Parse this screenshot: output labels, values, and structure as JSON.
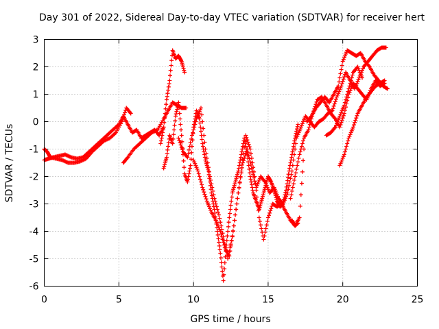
{
  "chart_data": {
    "type": "scatter",
    "title": "Day 301 of 2022, Sidereal Day-to-day VTEC variation (SDTVAR) for receiver hert",
    "xlabel": "GPS time / hours",
    "ylabel": "SDTVAR / TECUs",
    "xlim": [
      0,
      25
    ],
    "ylim": [
      -6,
      3
    ],
    "xticks": [
      0,
      5,
      10,
      15,
      20,
      25
    ],
    "yticks": [
      -6,
      -5,
      -4,
      -3,
      -2,
      -1,
      0,
      1,
      2,
      3
    ],
    "grid": true,
    "marker": "plus",
    "color": "#ff0000",
    "series": [
      {
        "name": "s1",
        "x": [
          0.0,
          0.3,
          0.6,
          1.0,
          1.4,
          1.8,
          2.2,
          2.6,
          3.0,
          3.4,
          3.8,
          4.2,
          4.6,
          5.0,
          5.3,
          5.6,
          5.9,
          6.2,
          6.5,
          6.8,
          7.1,
          7.4,
          7.7,
          8.0
        ],
        "y": [
          -1.4,
          -1.35,
          -1.3,
          -1.25,
          -1.2,
          -1.3,
          -1.35,
          -1.3,
          -1.1,
          -0.9,
          -0.7,
          -0.5,
          -0.3,
          -0.1,
          0.2,
          -0.1,
          -0.4,
          -0.3,
          -0.6,
          -0.5,
          -0.4,
          -0.3,
          -0.5,
          -0.2
        ]
      },
      {
        "name": "s2",
        "x": [
          0.0,
          0.2,
          0.4,
          0.8,
          1.2,
          1.6,
          2.0,
          2.4,
          2.8,
          3.2,
          3.6,
          4.0,
          4.4,
          4.8,
          5.2,
          5.5,
          5.8
        ],
        "y": [
          -1.0,
          -1.1,
          -1.3,
          -1.35,
          -1.4,
          -1.5,
          -1.5,
          -1.45,
          -1.35,
          -1.1,
          -0.9,
          -0.7,
          -0.6,
          -0.4,
          0.0,
          0.5,
          0.3
        ]
      },
      {
        "name": "s3",
        "x": [
          5.3,
          5.6,
          6.0,
          6.4,
          6.8,
          7.2,
          7.6,
          8.0,
          8.3,
          8.6,
          8.9,
          9.2,
          9.5
        ],
        "y": [
          -1.5,
          -1.3,
          -1.0,
          -0.8,
          -0.6,
          -0.4,
          -0.3,
          0.1,
          0.4,
          0.7,
          0.6,
          0.5,
          0.5
        ]
      },
      {
        "name": "s4",
        "x": [
          7.8,
          8.0,
          8.2,
          8.4,
          8.6,
          8.8,
          9.0,
          9.2,
          9.4
        ],
        "y": [
          -0.8,
          -0.2,
          0.8,
          1.5,
          2.6,
          2.3,
          2.4,
          2.2,
          1.8
        ]
      },
      {
        "name": "s5",
        "x": [
          8.0,
          8.2,
          8.4,
          8.6,
          8.8,
          9.0,
          9.2,
          9.4,
          9.6,
          9.8,
          10.0,
          10.2,
          10.4,
          10.6,
          10.8,
          11.0,
          11.2,
          11.4,
          11.6,
          11.8,
          12.0,
          12.2,
          12.4,
          12.6,
          12.8,
          13.0,
          13.2,
          13.4,
          13.6,
          13.8,
          14.0,
          14.2,
          14.4,
          14.6,
          14.8,
          15.0,
          15.2,
          15.4,
          15.6,
          15.8,
          16.0,
          16.2,
          16.4,
          16.6,
          16.8,
          17.0
        ],
        "y": [
          -1.7,
          -1.3,
          -0.5,
          -0.8,
          0.2,
          0.7,
          -0.5,
          -1.9,
          -2.2,
          -1.6,
          -0.2,
          0.4,
          0.1,
          -0.8,
          -1.4,
          -1.8,
          -2.6,
          -3.2,
          -4.0,
          -4.8,
          -5.8,
          -4.5,
          -3.5,
          -2.6,
          -2.2,
          -1.8,
          -1.2,
          -0.6,
          -1.2,
          -2.0,
          -2.6,
          -2.9,
          -3.2,
          -2.8,
          -2.4,
          -2.0,
          -2.2,
          -2.5,
          -2.9,
          -3.1,
          -3.0,
          -2.5,
          -1.8,
          -1.2,
          -0.6,
          -0.1
        ]
      },
      {
        "name": "s6",
        "x": [
          9.0,
          9.3,
          9.6,
          9.9,
          10.2,
          10.5,
          10.8,
          11.1,
          11.4,
          11.7,
          12.0,
          12.3,
          12.6,
          12.9,
          13.2,
          13.5,
          13.8,
          14.1,
          14.4,
          14.7,
          15.0,
          15.3,
          15.6,
          15.9,
          16.2,
          16.5,
          16.8,
          17.1,
          17.4
        ],
        "y": [
          -0.6,
          -1.1,
          -1.3,
          -0.5,
          0.1,
          0.5,
          -1.0,
          -2.0,
          -2.8,
          -3.4,
          -4.2,
          -5.0,
          -4.2,
          -3.0,
          -1.8,
          -0.5,
          -1.0,
          -2.0,
          -3.5,
          -4.3,
          -3.5,
          -3.0,
          -3.1,
          -3.0,
          -3.3,
          -3.6,
          -3.8,
          -3.5,
          -1.0
        ]
      },
      {
        "name": "s7",
        "x": [
          10.0,
          10.3,
          10.6,
          10.9,
          11.2,
          11.5,
          11.8,
          12.1,
          12.4,
          12.7,
          13.0,
          13.3,
          13.6,
          13.9,
          14.2,
          14.5,
          14.8,
          15.1,
          15.4,
          15.7,
          16.0,
          16.3,
          16.6,
          16.9,
          17.2,
          17.5,
          17.8,
          18.1,
          18.4,
          18.7,
          19.0,
          19.3,
          19.6,
          19.9,
          20.2,
          20.5,
          20.8,
          21.1,
          21.4,
          21.7,
          22.0,
          22.3,
          22.6,
          22.9
        ],
        "y": [
          -1.4,
          -1.8,
          -2.4,
          -2.9,
          -3.3,
          -3.6,
          -4.0,
          -4.6,
          -4.9,
          -3.8,
          -2.6,
          -1.5,
          -1.0,
          -1.7,
          -2.4,
          -2.0,
          -2.2,
          -2.6,
          -2.4,
          -2.8,
          -3.0,
          -2.6,
          -1.8,
          -0.6,
          -0.2,
          0.2,
          0.0,
          -0.2,
          0.0,
          0.1,
          0.3,
          0.4,
          0.9,
          1.3,
          1.8,
          1.5,
          1.2,
          1.6,
          2.0,
          2.2,
          2.4,
          2.6,
          2.7,
          2.7
        ]
      },
      {
        "name": "s8",
        "x": [
          16.5,
          16.8,
          17.1,
          17.4,
          17.7,
          18.0,
          18.3,
          18.6,
          18.9,
          19.2,
          19.5,
          19.8,
          20.1,
          20.4,
          20.7,
          21.0,
          21.3,
          21.6,
          21.9,
          22.2,
          22.5,
          22.8
        ],
        "y": [
          -2.8,
          -2.0,
          -1.2,
          -0.6,
          -0.3,
          0.3,
          0.8,
          0.9,
          0.6,
          0.3,
          0.1,
          -0.2,
          0.3,
          1.0,
          1.4,
          1.2,
          1.0,
          0.8,
          1.2,
          1.5,
          1.3,
          1.4
        ]
      },
      {
        "name": "s9",
        "x": [
          17.6,
          17.9,
          18.2,
          18.5,
          18.8,
          19.1,
          19.4,
          19.7,
          20.0,
          20.3,
          20.6,
          20.9,
          21.2,
          21.5,
          21.8,
          22.1,
          22.4,
          22.7,
          23.0
        ],
        "y": [
          0.0,
          0.2,
          0.5,
          0.7,
          0.9,
          0.7,
          1.0,
          1.3,
          2.2,
          2.6,
          2.5,
          2.4,
          2.5,
          2.2,
          2.0,
          1.7,
          1.5,
          1.3,
          1.2
        ]
      },
      {
        "name": "s10",
        "x": [
          19.8,
          20.1,
          20.4,
          20.7,
          21.0,
          21.3,
          21.6,
          21.9,
          22.2,
          22.5,
          22.8
        ],
        "y": [
          -1.6,
          -1.2,
          -0.6,
          -0.2,
          0.3,
          0.6,
          0.9,
          1.1,
          1.3,
          1.4,
          1.5
        ]
      },
      {
        "name": "s11",
        "x": [
          18.9,
          19.2,
          19.5,
          19.8,
          20.1,
          20.4,
          20.7,
          21.0,
          21.3
        ],
        "y": [
          -0.5,
          -0.4,
          -0.2,
          0.2,
          0.6,
          1.2,
          1.8,
          2.0,
          1.6
        ]
      },
      {
        "name": "s12",
        "x": [
          16.6,
          16.8,
          17.0
        ],
        "y": [
          -3.6,
          -3.8,
          -3.7
        ]
      }
    ]
  }
}
